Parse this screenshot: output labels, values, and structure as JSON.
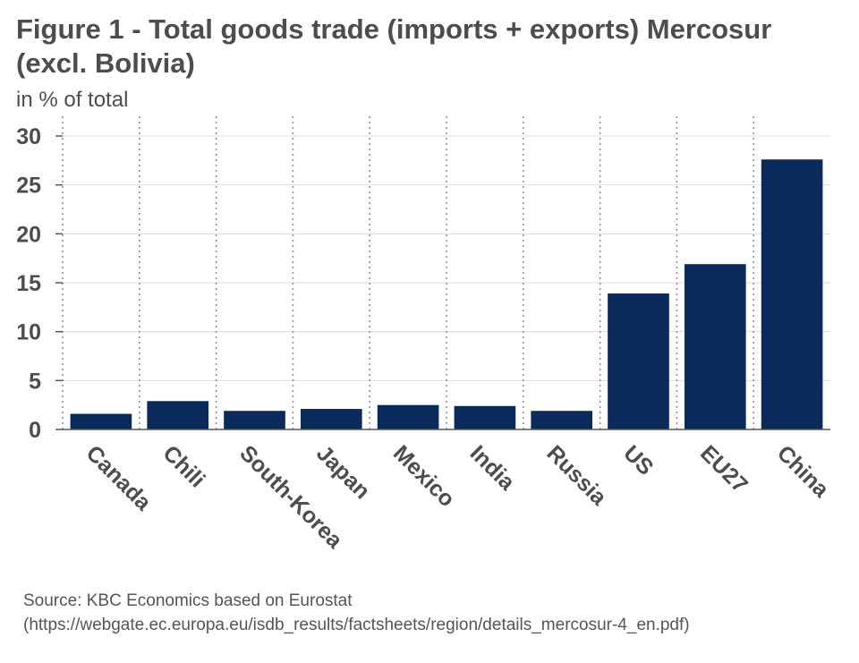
{
  "chart_data": {
    "type": "bar",
    "title": "Figure 1 - Total goods trade (imports + exports) Mercosur (excl. Bolivia)",
    "ylabel": "in % of total",
    "xlabel": "",
    "categories": [
      "Canada",
      "Chili",
      "South-Korea",
      "Japan",
      "Mexico",
      "India",
      "Russia",
      "US",
      "EU27",
      "China"
    ],
    "values": [
      1.6,
      2.9,
      1.9,
      2.1,
      2.5,
      2.4,
      1.9,
      13.9,
      16.9,
      27.6
    ],
    "ylim": [
      0,
      30
    ],
    "yticks": [
      0,
      5,
      10,
      15,
      20,
      25,
      30
    ],
    "bar_color": "#0a2a5c",
    "grid": true
  },
  "source": "Source: KBC Economics based on Eurostat (https://webgate.ec.europa.eu/isdb_results/factsheets/region/details_mercosur-4_en.pdf)"
}
